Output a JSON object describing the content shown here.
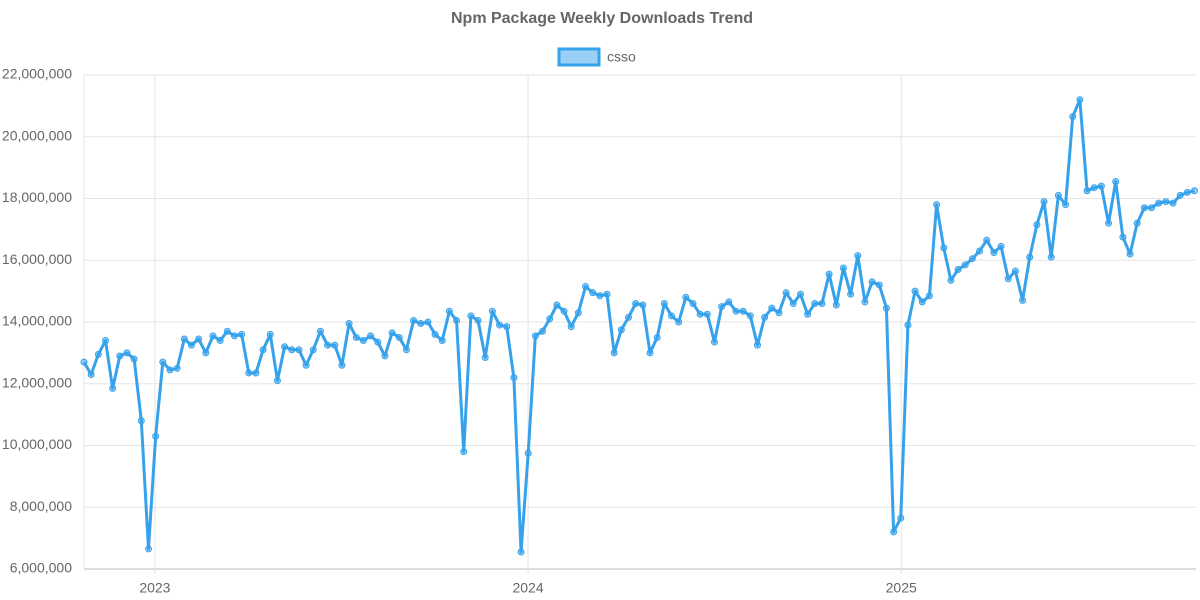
{
  "chart_data": {
    "type": "line",
    "title": "Npm Package Weekly Downloads Trend",
    "legend": "top",
    "grid": true,
    "xlim": [
      2022.81,
      2025.79
    ],
    "xticks": [
      2023,
      2024,
      2025
    ],
    "ylim": [
      6000000,
      22000000
    ],
    "yticks": [
      {
        "value": 6000000,
        "label": "6,000,000"
      },
      {
        "value": 8000000,
        "label": "8,000,000"
      },
      {
        "value": 10000000,
        "label": "10,000,000"
      },
      {
        "value": 12000000,
        "label": "12,000,000"
      },
      {
        "value": 14000000,
        "label": "14,000,000"
      },
      {
        "value": 16000000,
        "label": "16,000,000"
      },
      {
        "value": 18000000,
        "label": "18,000,000"
      },
      {
        "value": 20000000,
        "label": "20,000,000"
      },
      {
        "value": 22000000,
        "label": "22,000,000"
      }
    ],
    "x": [
      2022.81,
      2022.8292,
      2022.8484,
      2022.8676,
      2022.8868,
      2022.906,
      2022.9252,
      2022.9444,
      2022.9636,
      2022.9828,
      2023.002,
      2023.0212,
      2023.0404,
      2023.0596,
      2023.0788,
      2023.098,
      2023.1172,
      2023.1364,
      2023.1556,
      2023.1748,
      2023.194,
      2023.2132,
      2023.2324,
      2023.2516,
      2023.2708,
      2023.29,
      2023.3092,
      2023.3284,
      2023.3476,
      2023.3668,
      2023.386,
      2023.4052,
      2023.4244,
      2023.4436,
      2023.4628,
      2023.482,
      2023.5012,
      2023.5204,
      2023.5396,
      2023.5588,
      2023.578,
      2023.5972,
      2023.6164,
      2023.6356,
      2023.6548,
      2023.674,
      2023.6932,
      2023.7124,
      2023.7316,
      2023.7508,
      2023.77,
      2023.7892,
      2023.8084,
      2023.8276,
      2023.8468,
      2023.866,
      2023.8852,
      2023.9044,
      2023.9236,
      2023.9428,
      2023.962,
      2023.9812,
      2024.0004,
      2024.0196,
      2024.0388,
      2024.058,
      2024.0772,
      2024.0964,
      2024.1156,
      2024.1348,
      2024.154,
      2024.1732,
      2024.1924,
      2024.2116,
      2024.2308,
      2024.25,
      2024.2692,
      2024.2884,
      2024.3076,
      2024.3268,
      2024.346,
      2024.3652,
      2024.3844,
      2024.4036,
      2024.4228,
      2024.442,
      2024.4612,
      2024.4804,
      2024.4996,
      2024.5188,
      2024.538,
      2024.5572,
      2024.5764,
      2024.5956,
      2024.6148,
      2024.634,
      2024.6532,
      2024.6724,
      2024.6916,
      2024.7108,
      2024.73,
      2024.7492,
      2024.7684,
      2024.7876,
      2024.8068,
      2024.826,
      2024.8452,
      2024.8644,
      2024.8836,
      2024.9028,
      2024.922,
      2024.9412,
      2024.9604,
      2024.9796,
      2024.9988,
      2025.018,
      2025.0372,
      2025.0564,
      2025.0756,
      2025.0948,
      2025.114,
      2025.1332,
      2025.1524,
      2025.1716,
      2025.1908,
      2025.21,
      2025.2292,
      2025.2484,
      2025.2676,
      2025.2868,
      2025.306,
      2025.3252,
      2025.3444,
      2025.3636,
      2025.3828,
      2025.402,
      2025.4212,
      2025.4404,
      2025.4596,
      2025.4788,
      2025.498,
      2025.5172,
      2025.5364,
      2025.5556,
      2025.5748,
      2025.594,
      2025.6132,
      2025.6324,
      2025.6516,
      2025.6708,
      2025.69,
      2025.7092,
      2025.7284,
      2025.7476,
      2025.7668,
      2025.786
    ],
    "series": [
      {
        "name": "csso",
        "color": "#36a2eb",
        "values": [
          12700000,
          12300000,
          12950000,
          13400000,
          11850000,
          12900000,
          13000000,
          12800000,
          10800000,
          6650000,
          10300000,
          12700000,
          12450000,
          12500000,
          13450000,
          13250000,
          13450000,
          13000000,
          13550000,
          13400000,
          13700000,
          13550000,
          13600000,
          12350000,
          12350000,
          13100000,
          13600000,
          12100000,
          13200000,
          13100000,
          13100000,
          12600000,
          13100000,
          13700000,
          13250000,
          13250000,
          12600000,
          13950000,
          13500000,
          13400000,
          13550000,
          13350000,
          12900000,
          13650000,
          13500000,
          13100000,
          14050000,
          13950000,
          14000000,
          13600000,
          13400000,
          14350000,
          14050000,
          9800000,
          14200000,
          14050000,
          12850000,
          14350000,
          13900000,
          13850000,
          12200000,
          6550000,
          9750000,
          13550000,
          13700000,
          14100000,
          14550000,
          14350000,
          13850000,
          14300000,
          15150000,
          14950000,
          14850000,
          14900000,
          13000000,
          13750000,
          14150000,
          14600000,
          14550000,
          13000000,
          13500000,
          14600000,
          14200000,
          14000000,
          14800000,
          14600000,
          14250000,
          14250000,
          13350000,
          14500000,
          14650000,
          14350000,
          14350000,
          14200000,
          13250000,
          14150000,
          14450000,
          14300000,
          14950000,
          14600000,
          14900000,
          14250000,
          14600000,
          14600000,
          15550000,
          14550000,
          15750000,
          14900000,
          16150000,
          14650000,
          15300000,
          15200000,
          14450000,
          7200000,
          7650000,
          13900000,
          15000000,
          14650000,
          14850000,
          17800000,
          16400000,
          15350000,
          15700000,
          15850000,
          16050000,
          16300000,
          16650000,
          16250000,
          16450000,
          15400000,
          15650000,
          14700000,
          16100000,
          17150000,
          17900000,
          16100000,
          18100000,
          17800000,
          20650000,
          21200000,
          18250000,
          18350000,
          18400000,
          17200000,
          18550000,
          16750000,
          16200000,
          17200000,
          17700000,
          17700000,
          17850000,
          17900000,
          17850000,
          18100000,
          18200000,
          18250000
        ]
      }
    ]
  }
}
